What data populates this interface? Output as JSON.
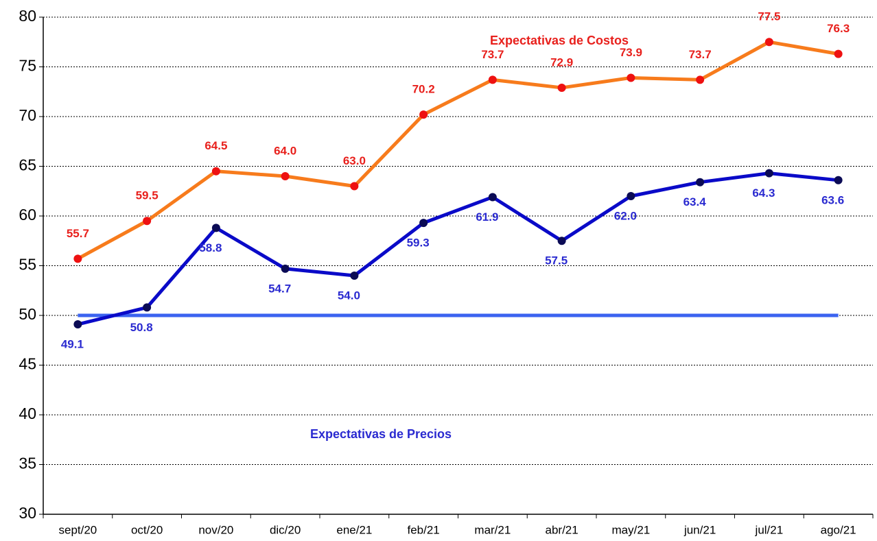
{
  "chart_data": {
    "type": "line",
    "categories": [
      "sept/20",
      "oct/20",
      "nov/20",
      "dic/20",
      "ene/21",
      "feb/21",
      "mar/21",
      "abr/21",
      "may/21",
      "jun/21",
      "jul/21",
      "ago/21"
    ],
    "series": [
      {
        "name": "Expectativas de Costos",
        "color": "#f77b1c",
        "marker_color": "#ee1111",
        "label_color": "#e8201c",
        "values": [
          55.7,
          59.5,
          64.5,
          64.0,
          63.0,
          70.2,
          73.7,
          72.9,
          73.9,
          73.7,
          77.5,
          76.3
        ],
        "value_labels": [
          "55.7",
          "59.5",
          "64.5",
          "64.0",
          "63.0",
          "70.2",
          "73.7",
          "72.9",
          "73.9",
          "73.7",
          "77.5",
          "76.3"
        ]
      },
      {
        "name": "Expectativas de Precios",
        "color": "#0a0ac8",
        "marker_color": "#0b0b55",
        "label_color": "#2a2ad0",
        "values": [
          49.1,
          50.8,
          58.8,
          54.7,
          54.0,
          59.3,
          61.9,
          57.5,
          62.0,
          63.4,
          64.3,
          63.6
        ],
        "value_labels": [
          "49.1",
          "50.8",
          "58.8",
          "54.7",
          "54.0",
          "59.3",
          "61.9",
          "57.5",
          "62.0",
          "63.4",
          "64.3",
          "63.6"
        ]
      }
    ],
    "reference_line": {
      "value": 50,
      "color": "#3b63f0"
    },
    "ylim": [
      30,
      80
    ],
    "yticks": [
      30,
      35,
      40,
      45,
      50,
      55,
      60,
      65,
      70,
      75,
      80
    ],
    "grid": true
  }
}
